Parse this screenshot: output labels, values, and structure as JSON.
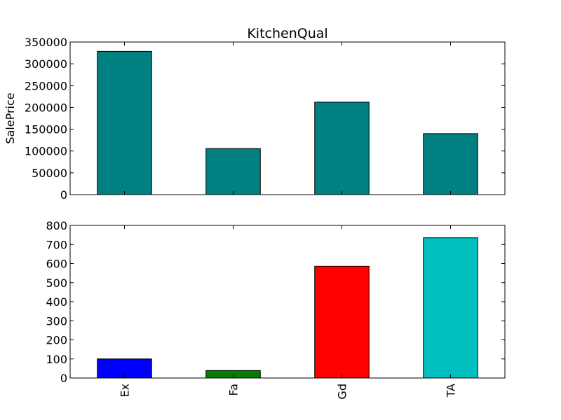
{
  "chart_data": [
    {
      "type": "bar",
      "title": "KitchenQual",
      "xlabel": "",
      "ylabel": "SalePrice",
      "categories": [
        "Ex",
        "Fa",
        "Gd",
        "TA"
      ],
      "values": [
        328500,
        105500,
        212000,
        139900
      ],
      "ylim": [
        0,
        350000
      ],
      "yticks": [
        0,
        50000,
        100000,
        150000,
        200000,
        250000,
        300000,
        350000
      ],
      "bar_colors": [
        "#008080",
        "#008080",
        "#008080",
        "#008080"
      ],
      "show_xtick_labels": false,
      "grid": false
    },
    {
      "type": "bar",
      "title": "",
      "xlabel": "",
      "ylabel": "",
      "categories": [
        "Ex",
        "Fa",
        "Gd",
        "TA"
      ],
      "values": [
        100,
        39,
        586,
        735
      ],
      "ylim": [
        0,
        800
      ],
      "yticks": [
        0,
        100,
        200,
        300,
        400,
        500,
        600,
        700,
        800
      ],
      "bar_colors": [
        "#0000ff",
        "#008000",
        "#ff0000",
        "#00bfbf"
      ],
      "show_xtick_labels": true,
      "grid": false
    }
  ]
}
